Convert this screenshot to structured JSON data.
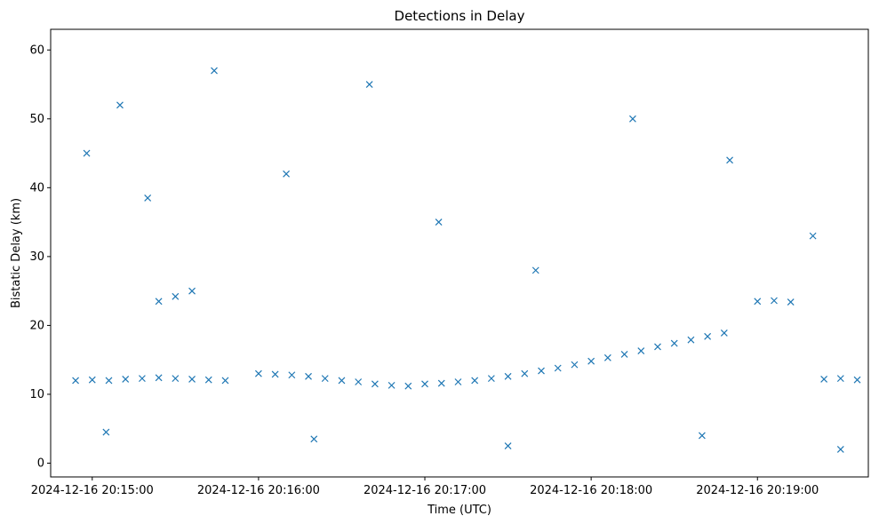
{
  "chart_data": {
    "type": "scatter",
    "title": "Detections in Delay",
    "xlabel": "Time (UTC)",
    "ylabel": "Bistatic Delay (km)",
    "marker": "x",
    "color": "#1f77b4",
    "grid": false,
    "xlim": [
      "2024-12-16 20:14:45",
      "2024-12-16 20:19:40"
    ],
    "ylim": [
      -2,
      63
    ],
    "xticks": [
      "2024-12-16 20:15:00",
      "2024-12-16 20:16:00",
      "2024-12-16 20:17:00",
      "2024-12-16 20:18:00",
      "2024-12-16 20:19:00"
    ],
    "yticks": [
      0,
      10,
      20,
      30,
      40,
      50,
      60
    ],
    "series": [
      {
        "name": "",
        "points": [
          [
            "2024-12-16 20:14:54",
            12.0
          ],
          [
            "2024-12-16 20:15:00",
            12.1
          ],
          [
            "2024-12-16 20:15:06",
            12.0
          ],
          [
            "2024-12-16 20:15:12",
            12.2
          ],
          [
            "2024-12-16 20:15:18",
            12.3
          ],
          [
            "2024-12-16 20:15:24",
            12.4
          ],
          [
            "2024-12-16 20:15:30",
            12.3
          ],
          [
            "2024-12-16 20:15:36",
            12.2
          ],
          [
            "2024-12-16 20:15:42",
            12.1
          ],
          [
            "2024-12-16 20:15:48",
            12.0
          ],
          [
            "2024-12-16 20:16:00",
            13.0
          ],
          [
            "2024-12-16 20:16:06",
            12.9
          ],
          [
            "2024-12-16 20:16:12",
            12.8
          ],
          [
            "2024-12-16 20:16:18",
            12.6
          ],
          [
            "2024-12-16 20:16:24",
            12.3
          ],
          [
            "2024-12-16 20:16:30",
            12.0
          ],
          [
            "2024-12-16 20:16:36",
            11.8
          ],
          [
            "2024-12-16 20:16:42",
            11.5
          ],
          [
            "2024-12-16 20:16:48",
            11.3
          ],
          [
            "2024-12-16 20:16:54",
            11.2
          ],
          [
            "2024-12-16 20:17:00",
            11.5
          ],
          [
            "2024-12-16 20:17:06",
            11.6
          ],
          [
            "2024-12-16 20:17:12",
            11.8
          ],
          [
            "2024-12-16 20:17:18",
            12.0
          ],
          [
            "2024-12-16 20:17:24",
            12.3
          ],
          [
            "2024-12-16 20:17:30",
            12.6
          ],
          [
            "2024-12-16 20:17:36",
            13.0
          ],
          [
            "2024-12-16 20:17:42",
            13.4
          ],
          [
            "2024-12-16 20:17:48",
            13.8
          ],
          [
            "2024-12-16 20:17:54",
            14.3
          ],
          [
            "2024-12-16 20:18:00",
            14.8
          ],
          [
            "2024-12-16 20:18:06",
            15.3
          ],
          [
            "2024-12-16 20:18:12",
            15.8
          ],
          [
            "2024-12-16 20:18:18",
            16.3
          ],
          [
            "2024-12-16 20:18:24",
            16.9
          ],
          [
            "2024-12-16 20:18:30",
            17.4
          ],
          [
            "2024-12-16 20:18:36",
            17.9
          ],
          [
            "2024-12-16 20:18:42",
            18.4
          ],
          [
            "2024-12-16 20:18:48",
            18.9
          ],
          [
            "2024-12-16 20:19:00",
            23.5
          ],
          [
            "2024-12-16 20:19:06",
            23.6
          ],
          [
            "2024-12-16 20:19:12",
            23.4
          ],
          [
            "2024-12-16 20:19:24",
            12.2
          ],
          [
            "2024-12-16 20:19:30",
            12.3
          ],
          [
            "2024-12-16 20:19:36",
            12.1
          ],
          [
            "2024-12-16 20:15:24",
            23.5
          ],
          [
            "2024-12-16 20:15:30",
            24.2
          ],
          [
            "2024-12-16 20:15:36",
            25.0
          ],
          [
            "2024-12-16 20:14:58",
            45.0
          ],
          [
            "2024-12-16 20:15:10",
            52.0
          ],
          [
            "2024-12-16 20:15:20",
            38.5
          ],
          [
            "2024-12-16 20:15:44",
            57.0
          ],
          [
            "2024-12-16 20:16:10",
            42.0
          ],
          [
            "2024-12-16 20:16:40",
            55.0
          ],
          [
            "2024-12-16 20:17:05",
            35.0
          ],
          [
            "2024-12-16 20:17:40",
            28.0
          ],
          [
            "2024-12-16 20:18:15",
            50.0
          ],
          [
            "2024-12-16 20:18:50",
            44.0
          ],
          [
            "2024-12-16 20:19:20",
            33.0
          ],
          [
            "2024-12-16 20:15:05",
            4.5
          ],
          [
            "2024-12-16 20:16:20",
            3.5
          ],
          [
            "2024-12-16 20:17:30",
            2.5
          ],
          [
            "2024-12-16 20:18:40",
            4.0
          ],
          [
            "2024-12-16 20:19:30",
            2.0
          ]
        ]
      }
    ]
  }
}
